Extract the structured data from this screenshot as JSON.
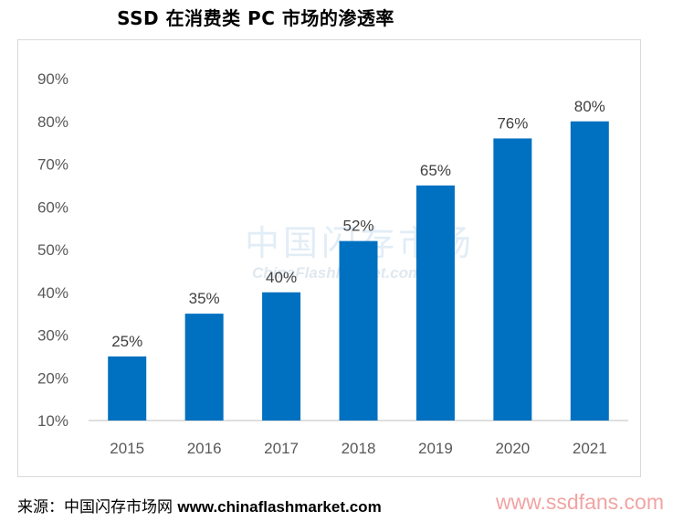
{
  "chart_data": {
    "type": "bar",
    "title": "SSD 在消费类 PC 市场的渗透率",
    "categories": [
      "2015",
      "2016",
      "2017",
      "2018",
      "2019",
      "2020",
      "2021"
    ],
    "values": [
      25,
      35,
      40,
      52,
      65,
      76,
      80
    ],
    "data_labels": [
      "25%",
      "35%",
      "40%",
      "52%",
      "65%",
      "76%",
      "80%"
    ],
    "y_ticks": [
      "10%",
      "20%",
      "30%",
      "40%",
      "50%",
      "60%",
      "70%",
      "80%",
      "90%"
    ],
    "ylim": [
      10,
      90
    ],
    "xlabel": "",
    "ylabel": "",
    "bar_color": "#0070c0",
    "grid": false
  },
  "watermark": {
    "cn": "中国闪存市场",
    "en": "ChinaFlashMarket.com"
  },
  "source": {
    "prefix": "来源：中国闪存市场网",
    "site": "www.chinaflashmarket.com"
  },
  "brand": "www.ssdfans.com"
}
